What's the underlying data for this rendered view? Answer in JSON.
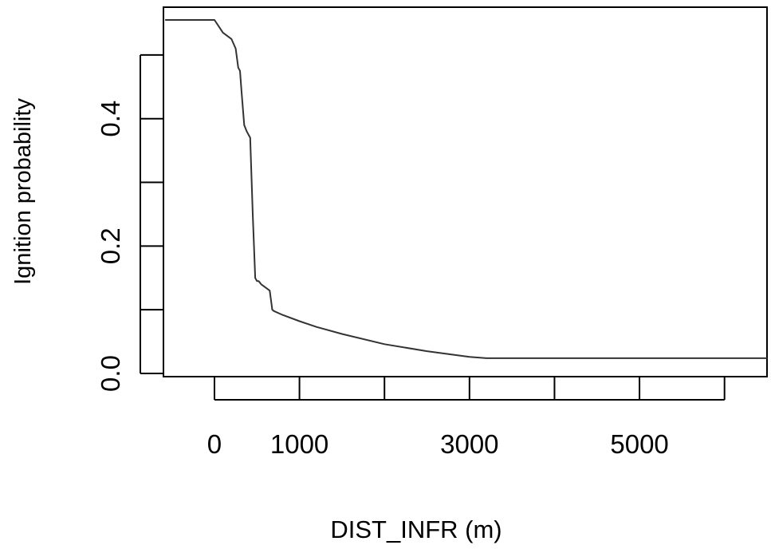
{
  "chart_data": {
    "type": "line",
    "title": "",
    "xlabel": "DIST_INFR (m)",
    "ylabel": "Ignition probability",
    "xlim": [
      -600,
      6500
    ],
    "ylim": [
      -0.005,
      0.575
    ],
    "xticks": [
      0,
      1000,
      2000,
      3000,
      4000,
      5000,
      6000
    ],
    "xtick_labels": [
      "0",
      "1000",
      "",
      "3000",
      "",
      "5000",
      ""
    ],
    "yticks": [
      0.0,
      0.1,
      0.2,
      0.3,
      0.4,
      0.5
    ],
    "ytick_labels": [
      "0.0",
      "",
      "0.2",
      "",
      "0.4",
      ""
    ],
    "grid": false,
    "series": [
      {
        "line_color": "#333333",
        "x": [
          -580,
          0,
          50,
          100,
          150,
          200,
          250,
          280,
          300,
          320,
          350,
          380,
          420,
          450,
          480,
          500,
          520,
          550,
          600,
          650,
          680,
          700,
          800,
          1000,
          1200,
          1500,
          2000,
          2500,
          3000,
          3200,
          4000,
          5000,
          6000,
          6500
        ],
        "y": [
          0.555,
          0.555,
          0.545,
          0.535,
          0.53,
          0.525,
          0.51,
          0.48,
          0.475,
          0.44,
          0.39,
          0.38,
          0.37,
          0.25,
          0.15,
          0.145,
          0.145,
          0.14,
          0.135,
          0.13,
          0.1,
          0.098,
          0.092,
          0.082,
          0.073,
          0.062,
          0.046,
          0.035,
          0.026,
          0.024,
          0.024,
          0.024,
          0.024,
          0.024
        ]
      }
    ]
  }
}
